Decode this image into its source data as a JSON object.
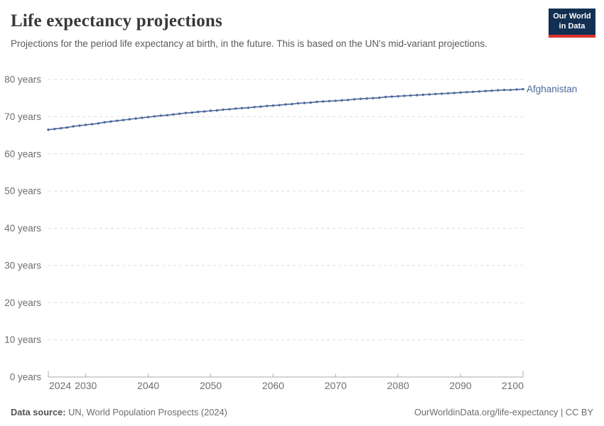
{
  "header": {
    "title": "Life expectancy projections",
    "subtitle": "Projections for the period life expectancy at birth, in the future. This is based on the UN's mid-variant projections.",
    "logo": {
      "line1": "Our World",
      "line2": "in Data",
      "bg_color": "#132f52",
      "accent_color": "#dc322c"
    }
  },
  "footer": {
    "source_label": "Data source:",
    "source_text": " UN, World Population Prospects (2024)",
    "link_text": "OurWorldinData.org/life-expectancy | CC BY"
  },
  "chart_data": {
    "type": "line",
    "title": "Life expectancy projections",
    "xlabel": "",
    "ylabel": "",
    "xlim": [
      2024,
      2100
    ],
    "ylim": [
      0,
      80
    ],
    "x_ticks": [
      2024,
      2030,
      2040,
      2050,
      2060,
      2070,
      2080,
      2090,
      2100
    ],
    "y_ticks": [
      0,
      10,
      20,
      30,
      40,
      50,
      60,
      70,
      80
    ],
    "y_tick_suffix": " years",
    "grid": "horizontal-dashed",
    "legend_position": "end-of-line-label",
    "colors": {
      "grid": "#dddddd",
      "axis": "#a8a8a8",
      "tick_label": "#6e6e6e"
    },
    "series": [
      {
        "name": "Afghanistan",
        "color": "#4c6a9c",
        "x": [
          2024,
          2025,
          2026,
          2027,
          2028,
          2029,
          2030,
          2031,
          2032,
          2033,
          2034,
          2035,
          2036,
          2037,
          2038,
          2039,
          2040,
          2041,
          2042,
          2043,
          2044,
          2045,
          2046,
          2047,
          2048,
          2049,
          2050,
          2051,
          2052,
          2053,
          2054,
          2055,
          2056,
          2057,
          2058,
          2059,
          2060,
          2061,
          2062,
          2063,
          2064,
          2065,
          2066,
          2067,
          2068,
          2069,
          2070,
          2071,
          2072,
          2073,
          2074,
          2075,
          2076,
          2077,
          2078,
          2079,
          2080,
          2081,
          2082,
          2083,
          2084,
          2085,
          2086,
          2087,
          2088,
          2089,
          2090,
          2091,
          2092,
          2093,
          2094,
          2095,
          2096,
          2097,
          2098,
          2099,
          2100
        ],
        "values": [
          66.5,
          66.7,
          66.9,
          67.1,
          67.4,
          67.6,
          67.8,
          68.0,
          68.2,
          68.5,
          68.7,
          68.9,
          69.1,
          69.3,
          69.5,
          69.7,
          69.9,
          70.1,
          70.3,
          70.4,
          70.6,
          70.8,
          71.0,
          71.1,
          71.3,
          71.4,
          71.6,
          71.7,
          71.9,
          72.0,
          72.2,
          72.3,
          72.4,
          72.6,
          72.7,
          72.9,
          73.0,
          73.1,
          73.3,
          73.4,
          73.6,
          73.7,
          73.8,
          74.0,
          74.1,
          74.2,
          74.3,
          74.4,
          74.5,
          74.7,
          74.8,
          74.9,
          75.0,
          75.1,
          75.3,
          75.4,
          75.5,
          75.6,
          75.7,
          75.8,
          75.9,
          76.0,
          76.1,
          76.2,
          76.3,
          76.4,
          76.5,
          76.6,
          76.7,
          76.8,
          76.9,
          77.0,
          77.1,
          77.2,
          77.2,
          77.3,
          77.4
        ]
      }
    ]
  }
}
